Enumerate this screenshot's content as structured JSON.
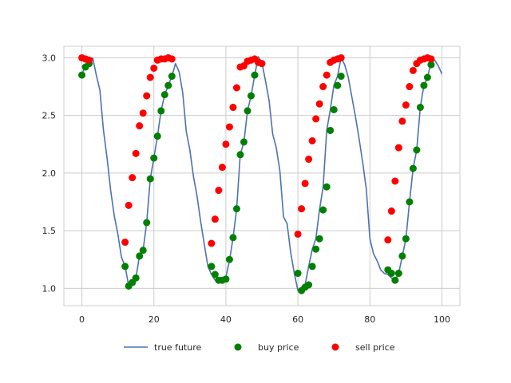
{
  "chart_data": {
    "type": "line",
    "title": "",
    "xlabel": "",
    "ylabel": "",
    "xlim": [
      -5,
      105
    ],
    "ylim": [
      0.85,
      3.1
    ],
    "xticks": [
      0,
      20,
      40,
      60,
      80,
      100
    ],
    "yticks": [
      1.0,
      1.5,
      2.0,
      2.5,
      3.0
    ],
    "xtick_labels": [
      "0",
      "20",
      "40",
      "60",
      "80",
      "100"
    ],
    "ytick_labels": [
      "1.0",
      "1.5",
      "2.0",
      "2.5",
      "3.0"
    ],
    "grid": true,
    "legend": "bottom, outside plot, 3 columns",
    "series": [
      {
        "name": "true future",
        "kind": "line",
        "color": "#4c72b0",
        "x": [
          0,
          1,
          2,
          3,
          4,
          5,
          6,
          7,
          8,
          9,
          10,
          11,
          12,
          13,
          14,
          15,
          16,
          17,
          18,
          19,
          20,
          21,
          22,
          23,
          24,
          25,
          26,
          27,
          28,
          29,
          30,
          31,
          32,
          33,
          34,
          35,
          36,
          37,
          38,
          39,
          40,
          41,
          42,
          43,
          44,
          45,
          46,
          47,
          48,
          49,
          50,
          51,
          52,
          53,
          54,
          55,
          56,
          57,
          58,
          59,
          60,
          61,
          62,
          63,
          64,
          65,
          66,
          67,
          68,
          69,
          70,
          71,
          72,
          73,
          74,
          75,
          76,
          77,
          78,
          79,
          80,
          81,
          82,
          83,
          84,
          85,
          86,
          87,
          88,
          89,
          90,
          91,
          92,
          93,
          94,
          95,
          96,
          97,
          98,
          99,
          100
        ],
        "y": [
          2.86,
          2.93,
          2.95,
          3.0,
          2.85,
          2.72,
          2.37,
          2.13,
          1.85,
          1.63,
          1.47,
          1.27,
          1.19,
          1.02,
          1.05,
          1.09,
          1.28,
          1.33,
          1.57,
          1.95,
          2.13,
          2.32,
          2.54,
          2.68,
          2.76,
          2.84,
          2.95,
          2.88,
          2.7,
          2.36,
          2.2,
          1.97,
          1.8,
          1.58,
          1.38,
          1.19,
          1.12,
          1.07,
          1.07,
          1.08,
          1.1,
          1.24,
          1.44,
          1.69,
          2.16,
          2.27,
          2.54,
          2.67,
          2.85,
          3.01,
          2.96,
          2.8,
          2.63,
          2.34,
          2.22,
          2.02,
          1.62,
          1.56,
          1.31,
          1.13,
          0.98,
          1.01,
          1.03,
          1.19,
          1.34,
          1.43,
          1.68,
          1.88,
          2.37,
          2.55,
          2.76,
          2.84,
          3.0,
          2.94,
          2.83,
          2.66,
          2.49,
          2.3,
          2.09,
          1.86,
          1.43,
          1.3,
          1.24,
          1.16,
          1.13,
          1.12,
          1.09,
          1.07,
          1.13,
          1.28,
          1.43,
          1.75,
          2.04,
          2.2,
          2.57,
          2.76,
          2.83,
          2.96,
          2.98,
          2.93,
          2.86
        ]
      },
      {
        "name": "buy price",
        "kind": "scatter",
        "color": "#008000",
        "x": [
          0,
          1,
          2,
          12,
          13,
          14,
          15,
          16,
          17,
          18,
          19,
          20,
          21,
          22,
          23,
          24,
          25,
          36,
          37,
          38,
          39,
          40,
          41,
          42,
          43,
          44,
          45,
          46,
          47,
          48,
          60,
          61,
          62,
          63,
          64,
          65,
          66,
          67,
          68,
          69,
          70,
          71,
          72,
          85,
          86,
          87,
          88,
          89,
          90,
          91,
          92,
          93,
          94,
          95,
          96,
          97
        ],
        "y": [
          2.85,
          2.92,
          2.95,
          1.19,
          1.02,
          1.05,
          1.09,
          1.28,
          1.33,
          1.57,
          1.95,
          2.13,
          2.32,
          2.54,
          2.68,
          2.76,
          2.84,
          1.19,
          1.12,
          1.07,
          1.07,
          1.08,
          1.25,
          1.44,
          1.69,
          2.16,
          2.27,
          2.54,
          2.67,
          2.85,
          1.13,
          0.98,
          1.01,
          1.03,
          1.19,
          1.34,
          1.43,
          1.68,
          1.88,
          2.37,
          2.55,
          2.76,
          2.84,
          1.16,
          1.13,
          1.07,
          1.13,
          1.28,
          1.43,
          1.75,
          2.04,
          2.2,
          2.57,
          2.76,
          2.83,
          2.94
        ]
      },
      {
        "name": "sell price",
        "kind": "scatter",
        "color": "#ff0000",
        "x": [
          0,
          1,
          2,
          12,
          13,
          14,
          15,
          16,
          17,
          18,
          19,
          20,
          21,
          22,
          23,
          24,
          25,
          36,
          37,
          38,
          39,
          40,
          41,
          42,
          43,
          44,
          45,
          46,
          47,
          48,
          49,
          50,
          60,
          61,
          62,
          63,
          64,
          65,
          66,
          67,
          68,
          69,
          70,
          71,
          72,
          85,
          86,
          87,
          88,
          89,
          90,
          91,
          92,
          93,
          94,
          95,
          96,
          97
        ],
        "y": [
          3.0,
          2.99,
          2.98,
          1.4,
          1.72,
          1.96,
          2.17,
          2.41,
          2.52,
          2.67,
          2.83,
          2.91,
          2.98,
          2.99,
          2.99,
          3.0,
          2.99,
          1.39,
          1.6,
          1.85,
          2.05,
          2.25,
          2.4,
          2.57,
          2.74,
          2.92,
          2.93,
          2.97,
          2.98,
          2.99,
          2.96,
          2.95,
          1.47,
          1.69,
          1.91,
          2.12,
          2.28,
          2.47,
          2.6,
          2.75,
          2.85,
          2.96,
          2.98,
          2.99,
          3.0,
          1.42,
          1.67,
          1.93,
          2.22,
          2.45,
          2.59,
          2.75,
          2.89,
          2.95,
          2.98,
          2.99,
          3.0,
          2.99
        ]
      }
    ]
  }
}
